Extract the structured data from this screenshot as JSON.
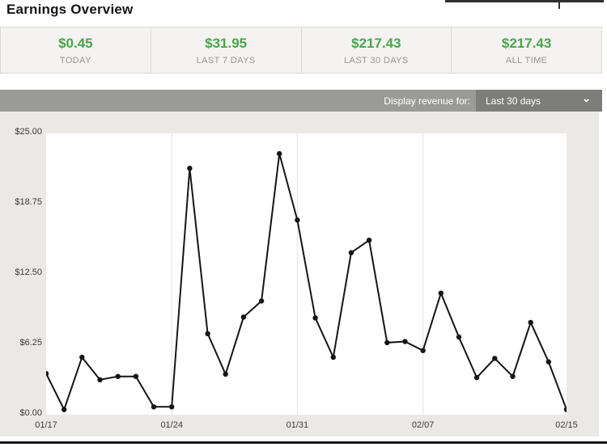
{
  "page": {
    "title": "Earnings Overview"
  },
  "stats": {
    "cards": [
      {
        "value": "$0.45",
        "label": "TODAY"
      },
      {
        "value": "$31.95",
        "label": "LAST 7 DAYS"
      },
      {
        "value": "$217.43",
        "label": "LAST 30 DAYS"
      },
      {
        "value": "$217.43",
        "label": "ALL TIME"
      }
    ]
  },
  "toolbar": {
    "label": "Display revenue for:",
    "selected_option": "Last 30 days",
    "chevron_icon": "⌄"
  },
  "colors": {
    "accent_green": "#48a64a",
    "bar_gray": "#9a9a97",
    "dropdown_gray": "#7d7d7a",
    "container_gray": "#eae9e6",
    "line_black": "#151515",
    "gridline": "#e3e3e0",
    "axis_text": "#3c3c3c"
  },
  "chart_data": {
    "type": "line",
    "title": "",
    "xlabel": "",
    "ylabel": "",
    "legend": "none",
    "grid": "vertical-weekly-only",
    "line_color": "#151515",
    "marker": "circle",
    "ylim": [
      0,
      25
    ],
    "x": [
      "01/17",
      "01/18",
      "01/19",
      "01/20",
      "01/21",
      "01/22",
      "01/23",
      "01/24",
      "01/25",
      "01/26",
      "01/27",
      "01/28",
      "01/29",
      "01/30",
      "01/31",
      "02/01",
      "02/02",
      "02/03",
      "02/04",
      "02/05",
      "02/06",
      "02/07",
      "02/08",
      "02/09",
      "02/10",
      "02/11",
      "02/12",
      "02/13",
      "02/14",
      "02/15"
    ],
    "values": [
      3.66,
      0.45,
      5.1,
      3.1,
      3.4,
      3.4,
      0.7,
      0.7,
      21.9,
      7.2,
      3.6,
      8.67,
      10.1,
      23.2,
      17.3,
      8.6,
      5.1,
      14.4,
      15.5,
      6.4,
      6.5,
      5.7,
      10.8,
      6.9,
      3.3,
      5.0,
      3.4,
      8.2,
      4.7,
      0.45
    ],
    "y_ticks": [
      {
        "label": "$0.00",
        "value": 0
      },
      {
        "label": "$6.25",
        "value": 6.25
      },
      {
        "label": "$12.50",
        "value": 12.5
      },
      {
        "label": "$18.75",
        "value": 18.75
      },
      {
        "label": "$25.00",
        "value": 25
      }
    ],
    "x_ticks": [
      {
        "label": "01/17",
        "index": 0,
        "gridline": false
      },
      {
        "label": "01/24",
        "index": 7,
        "gridline": true
      },
      {
        "label": "01/31",
        "index": 14,
        "gridline": true
      },
      {
        "label": "02/07",
        "index": 21,
        "gridline": true
      },
      {
        "label": "02/15",
        "index": 29,
        "gridline": false
      }
    ]
  }
}
